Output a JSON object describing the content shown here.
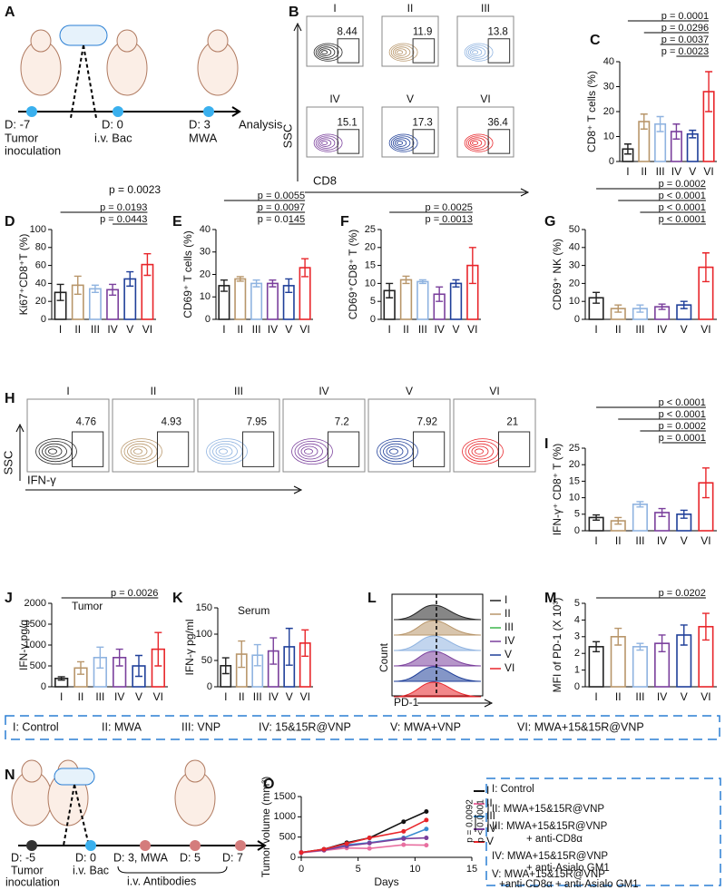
{
  "group_colors": [
    "#222222",
    "#b8966a",
    "#8fb3e0",
    "#7a3f9c",
    "#1f3f99",
    "#e8252a"
  ],
  "panel_A": {
    "panel": "A",
    "texts": [
      "D: -7",
      "Tumor",
      "inoculation",
      "D: 0",
      "i.v. Bac",
      "D: 3",
      "MWA",
      "Analysis"
    ],
    "note": "p = 0.0023"
  },
  "panel_B": {
    "panel": "B",
    "groups": [
      "I",
      "II",
      "III",
      "IV",
      "V",
      "VI"
    ],
    "gates": [
      8.44,
      11.9,
      13.8,
      15.1,
      17.3,
      36.4
    ],
    "x_label": "CD8",
    "y_label": "SSC"
  },
  "panel_H": {
    "panel": "H",
    "groups": [
      "I",
      "II",
      "III",
      "IV",
      "V",
      "VI"
    ],
    "gates": [
      4.76,
      4.93,
      7.95,
      7.2,
      7.92,
      21
    ],
    "x_label": "IFN-γ",
    "y_label": "SSC"
  },
  "panel_L": {
    "panel": "L",
    "groups": [
      "I",
      "II",
      "III",
      "IV",
      "V",
      "VI"
    ],
    "legend_colors": [
      "#222222",
      "#b8966a",
      "#3cb54a",
      "#7a3f9c",
      "#1f3f99",
      "#e8252a"
    ],
    "x_label": "PD-1",
    "y_label": "Count"
  },
  "group_legend": [
    "I: Control",
    "II: MWA",
    "III: VNP",
    "IV: 15&15R@VNP",
    "V: MWA+VNP",
    "VI: MWA+15&15R@VNP"
  ],
  "panel_N": {
    "panel": "N",
    "texts": [
      "D: -5",
      "Tumor",
      "inoculation",
      "D: 0",
      "i.v. Bac",
      "D: 3, MWA",
      "D: 5",
      "D: 7",
      "i.v. Antibodies"
    ]
  },
  "o_legend": [
    "I: Control",
    "II: MWA+15&15R@VNP",
    "III: MWA+15&15R@VNP",
    "+ anti-CD8α",
    "IV: MWA+15&15R@VNP",
    "+ anti-Asialo GM1",
    "V:  MWA+15&15R@VNP",
    "+anti-CD8α + anti-Asialo GM1"
  ],
  "chart_data": [
    {
      "type": "bar",
      "panel": "C",
      "y_label": "CD8⁺ T cells (%)",
      "categories": [
        "I",
        "II",
        "III",
        "IV",
        "V",
        "VI"
      ],
      "values": [
        5,
        16,
        15,
        12,
        11,
        28
      ],
      "errors": [
        2,
        3,
        3,
        3,
        1.5,
        8
      ],
      "ylim": [
        0,
        40
      ],
      "yticks": [
        0,
        10,
        20,
        30,
        40
      ],
      "annotations": [
        {
          "text": "p = 0.0001",
          "from": "I",
          "to": "VI"
        },
        {
          "text": "p = 0.0296",
          "from": "II",
          "to": "VI"
        },
        {
          "text": "p = 0.0037",
          "from": "III",
          "to": "VI"
        },
        {
          "text": "p = 0.0023",
          "from": "IV",
          "to": "VI"
        }
      ]
    },
    {
      "type": "bar",
      "panel": "D",
      "y_label": "Ki67⁺CD8⁺T (%)",
      "categories": [
        "I",
        "II",
        "III",
        "IV",
        "V",
        "VI"
      ],
      "values": [
        30,
        38,
        34,
        33,
        45,
        61
      ],
      "errors": [
        9,
        10,
        4,
        6,
        8,
        12
      ],
      "ylim": [
        0,
        100
      ],
      "yticks": [
        0,
        20,
        40,
        60,
        80,
        100
      ],
      "annotations": [
        {
          "text": "p = 0.0193",
          "from": "I",
          "to": "VI"
        },
        {
          "text": "p = 0.0443",
          "from": "IV",
          "to": "VI"
        }
      ]
    },
    {
      "type": "bar",
      "panel": "E",
      "y_label": "CD69⁺ T cells (%)",
      "categories": [
        "I",
        "II",
        "III",
        "IV",
        "V",
        "VI"
      ],
      "values": [
        15,
        18,
        16,
        16,
        15,
        23
      ],
      "errors": [
        2.5,
        1,
        1.5,
        1.5,
        3,
        4
      ],
      "ylim": [
        0,
        40
      ],
      "yticks": [
        0,
        10,
        20,
        30,
        40
      ],
      "annotations": [
        {
          "text": "p = 0.0055",
          "from": "I",
          "to": "VI"
        },
        {
          "text": "p = 0.0097",
          "from": "III",
          "to": "VI"
        },
        {
          "text": "p = 0.0145",
          "from": "V",
          "to": "VI"
        }
      ]
    },
    {
      "type": "bar",
      "panel": "F",
      "y_label": "CD69⁺CD8⁺ T (%)",
      "categories": [
        "I",
        "II",
        "III",
        "IV",
        "V",
        "VI"
      ],
      "values": [
        8,
        11,
        10.5,
        7,
        10,
        15
      ],
      "errors": [
        2,
        1,
        0.5,
        2,
        1,
        5
      ],
      "ylim": [
        0,
        25
      ],
      "yticks": [
        0,
        5,
        10,
        15,
        20,
        25
      ],
      "annotations": [
        {
          "text": "p = 0.0025",
          "from": "I",
          "to": "VI"
        },
        {
          "text": "p = 0.0013",
          "from": "IV",
          "to": "VI"
        }
      ]
    },
    {
      "type": "bar",
      "panel": "G",
      "y_label": "CD69⁺ NK (%)",
      "categories": [
        "I",
        "II",
        "III",
        "IV",
        "V",
        "VI"
      ],
      "values": [
        12,
        6,
        6,
        7,
        8,
        29
      ],
      "errors": [
        3,
        2,
        2,
        1.5,
        2,
        8
      ],
      "ylim": [
        0,
        50
      ],
      "yticks": [
        0,
        10,
        20,
        30,
        40,
        50
      ],
      "annotations": [
        {
          "text": "p = 0.0002",
          "from": "I",
          "to": "VI"
        },
        {
          "text": "p < 0.0001",
          "from": "II",
          "to": "VI"
        },
        {
          "text": "p < 0.0001",
          "from": "III",
          "to": "VI"
        },
        {
          "text": "p < 0.0001",
          "from": "IV",
          "to": "VI"
        }
      ]
    },
    {
      "type": "bar",
      "panel": "I",
      "y_label": "IFN-γ⁺ CD8⁺ T (%)",
      "categories": [
        "I",
        "II",
        "III",
        "IV",
        "V",
        "VI"
      ],
      "values": [
        4,
        3,
        8,
        5.5,
        5,
        14.5
      ],
      "errors": [
        0.8,
        1,
        0.8,
        1.2,
        1.2,
        4.5
      ],
      "ylim": [
        0,
        25
      ],
      "yticks": [
        0,
        5,
        10,
        15,
        20,
        25
      ],
      "annotations": [
        {
          "text": "p < 0.0001",
          "from": "I",
          "to": "VI"
        },
        {
          "text": "p < 0.0001",
          "from": "II",
          "to": "VI"
        },
        {
          "text": "p = 0.0002",
          "from": "III",
          "to": "VI"
        },
        {
          "text": "p = 0.0001",
          "from": "IV",
          "to": "VI"
        }
      ]
    },
    {
      "type": "bar",
      "panel": "J",
      "subtitle": "Tumor",
      "y_label": "IFN-γ pg/g",
      "categories": [
        "I",
        "II",
        "III",
        "IV",
        "V",
        "VI"
      ],
      "values": [
        200,
        450,
        700,
        700,
        500,
        900
      ],
      "errors": [
        40,
        150,
        250,
        200,
        250,
        400
      ],
      "ylim": [
        0,
        2000
      ],
      "yticks": [
        0,
        500,
        1000,
        1500,
        2000
      ],
      "annotations": [
        {
          "text": "p = 0.0026",
          "from": "I",
          "to": "VI"
        }
      ]
    },
    {
      "type": "bar",
      "panel": "K",
      "subtitle": "Serum",
      "y_label": "IFN-γ pg/ml",
      "categories": [
        "I",
        "II",
        "III",
        "IV",
        "V",
        "VI"
      ],
      "values": [
        40,
        62,
        60,
        68,
        76,
        83
      ],
      "errors": [
        15,
        25,
        20,
        25,
        35,
        25
      ],
      "ylim": [
        0,
        150
      ],
      "yticks": [
        0,
        50,
        100,
        150
      ],
      "annotations": []
    },
    {
      "type": "bar",
      "panel": "M",
      "y_label": "MFI of PD-1 (X 10³)",
      "categories": [
        "I",
        "II",
        "III",
        "IV",
        "V",
        "VI"
      ],
      "values": [
        2.4,
        3.0,
        2.4,
        2.6,
        3.1,
        3.6
      ],
      "errors": [
        0.3,
        0.5,
        0.2,
        0.5,
        0.6,
        0.8
      ],
      "ylim": [
        0,
        5
      ],
      "yticks": [
        0,
        1,
        2,
        3,
        4,
        5
      ],
      "annotations": [
        {
          "text": "p = 0.0202",
          "from": "I",
          "to": "VI"
        }
      ]
    },
    {
      "type": "line",
      "panel": "O",
      "x_label": "Days",
      "y_label": "Tumor volume (mm³)",
      "x": [
        0,
        2,
        4,
        6,
        9,
        11
      ],
      "xlim": [
        0,
        15
      ],
      "xticks": [
        0,
        5,
        10,
        15
      ],
      "ylim": [
        0,
        1500
      ],
      "yticks": [
        0,
        500,
        1000,
        1500
      ],
      "series": [
        {
          "name": "I",
          "color": "#111111",
          "values": [
            120,
            200,
            360,
            480,
            880,
            1130
          ]
        },
        {
          "name": "II",
          "color": "#e86fa0",
          "values": [
            110,
            170,
            230,
            220,
            310,
            300
          ]
        },
        {
          "name": "III",
          "color": "#3a8bd0",
          "values": [
            120,
            180,
            310,
            360,
            480,
            700
          ]
        },
        {
          "name": "IV",
          "color": "#7a3f9c",
          "values": [
            120,
            180,
            280,
            350,
            460,
            480
          ]
        },
        {
          "name": "V",
          "color": "#e8252a",
          "values": [
            120,
            200,
            340,
            480,
            640,
            920
          ]
        }
      ],
      "annotations": [
        "p = 0.0092",
        "p < 0.0001"
      ]
    }
  ]
}
